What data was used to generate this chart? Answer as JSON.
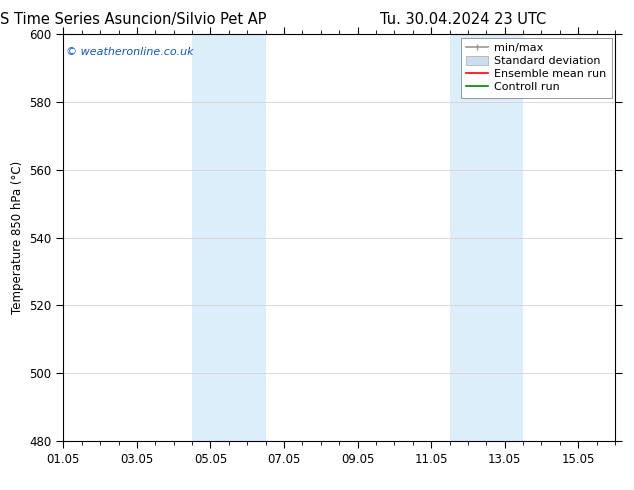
{
  "title_left": "ENS Time Series Asuncion/Silvio Pet AP",
  "title_right": "Tu. 30.04.2024 23 UTC",
  "ylabel": "Temperature 850 hPa (°C)",
  "xlim": [
    0,
    15
  ],
  "ylim": [
    480,
    600
  ],
  "yticks": [
    480,
    500,
    520,
    540,
    560,
    580,
    600
  ],
  "xtick_labels": [
    "01.05",
    "03.05",
    "05.05",
    "07.05",
    "09.05",
    "11.05",
    "13.05",
    "15.05"
  ],
  "xtick_positions": [
    0,
    2,
    4,
    6,
    8,
    10,
    12,
    14
  ],
  "shaded_bands": [
    {
      "x_start": 3.5,
      "x_end": 5.5,
      "color": "#dceef9"
    },
    {
      "x_start": 10.5,
      "x_end": 12.5,
      "color": "#dceef9"
    }
  ],
  "watermark_text": "© weatheronline.co.uk",
  "watermark_color": "#1155cc",
  "legend_entries": [
    {
      "label": "min/max",
      "color": "#999999",
      "lw": 1.2
    },
    {
      "label": "Standard deviation",
      "color": "#ccddee",
      "lw": 6
    },
    {
      "label": "Ensemble mean run",
      "color": "red",
      "lw": 1.2
    },
    {
      "label": "Controll run",
      "color": "green",
      "lw": 1.2
    }
  ],
  "background_color": "#ffffff",
  "grid_color": "#cccccc",
  "font_size_title": 10.5,
  "font_size_legend": 8,
  "font_size_ticks": 8.5,
  "font_size_ylabel": 8.5,
  "font_size_watermark": 8
}
